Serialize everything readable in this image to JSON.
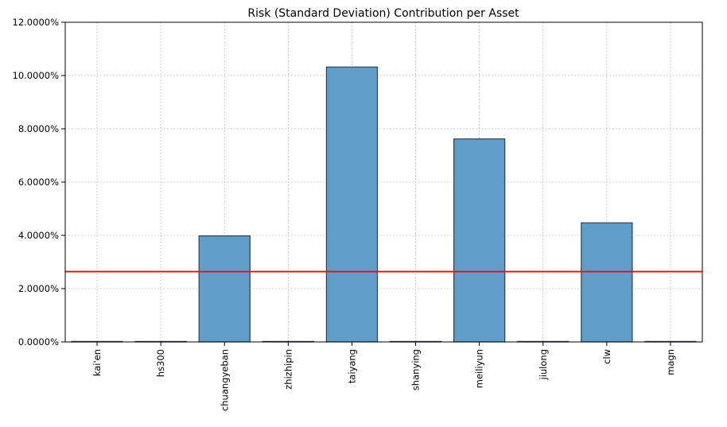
{
  "chart_data": {
    "type": "bar",
    "title": "Risk (Standard Deviation) Contribution per Asset",
    "xlabel": "",
    "ylabel": "",
    "categories": [
      "kai'en",
      "hs300",
      "chuangyeban",
      "zhizhipin",
      "taiyang",
      "shanying",
      "meiliyun",
      "jiulong",
      "clw",
      "magn"
    ],
    "values": [
      0.0,
      0.0,
      3.98,
      0.0,
      10.32,
      0.0,
      7.62,
      0.0,
      4.47,
      0.0
    ],
    "ylim": [
      0,
      12
    ],
    "yticks": [
      0,
      2,
      4,
      6,
      8,
      10,
      12
    ],
    "ytick_labels": [
      "0.0000%",
      "2.0000%",
      "4.0000%",
      "6.0000%",
      "8.0000%",
      "10.0000%",
      "12.0000%"
    ],
    "reference_line": {
      "value": 2.64,
      "color": "#ff0000"
    },
    "bar_color": "#5f9ec9",
    "bar_edge_color": "#2f4050",
    "grid": true,
    "legend": "none"
  }
}
